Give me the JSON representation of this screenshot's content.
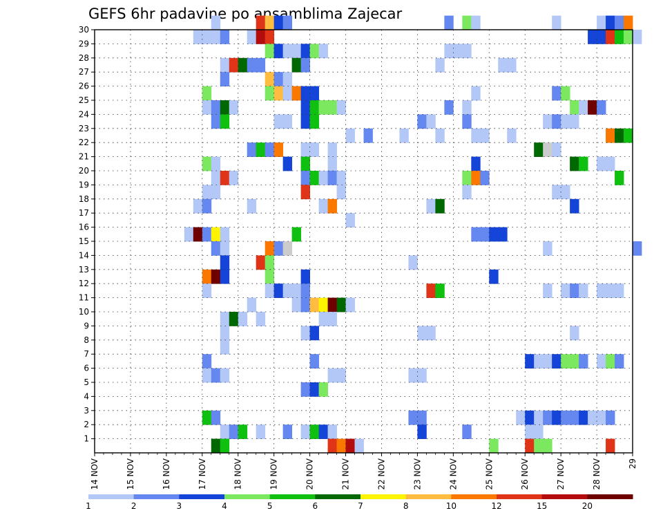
{
  "chart_data": {
    "type": "heatmap",
    "title": "GEFS 6hr padavine po ansamblima Zajecar",
    "xlabel": "",
    "ylabel": "",
    "x_ticks": [
      "14 NOV",
      "15 NOV",
      "16 NOV",
      "17 NOV",
      "18 NOV",
      "19 NOV",
      "20 NOV",
      "21 NOV",
      "22 NOV",
      "23 NOV",
      "24 NOV",
      "25 NOV",
      "26 NOV",
      "27 NOV",
      "28 NOV",
      "29"
    ],
    "y_ticks": [
      "1",
      "2",
      "3",
      "4",
      "5",
      "6",
      "7",
      "8",
      "9",
      "10",
      "11",
      "12",
      "13",
      "14",
      "15",
      "16",
      "17",
      "18",
      "19",
      "20",
      "21",
      "22",
      "23",
      "24",
      "25",
      "26",
      "27",
      "28",
      "29",
      "30"
    ],
    "x_range": [
      "14 NOV",
      "29 NOV"
    ],
    "steps_per_day": 4,
    "member_range": [
      0,
      30
    ],
    "grid": true,
    "legend": {
      "position": "bottom",
      "levels": [
        "1",
        "2",
        "3",
        "4",
        "5",
        "6",
        "7",
        "8",
        "10",
        "12",
        "15",
        "20"
      ],
      "colors": [
        "#b4c8f8",
        "#6488f0",
        "#1444d8",
        "#7ce860",
        "#10c010",
        "#006800",
        "#fff400",
        "#ffbc40",
        "#fa7800",
        "#e03418",
        "#b40c0c",
        "#6e0000"
      ]
    },
    "cells": [
      [
        30,
        13,
        1
      ],
      [
        30,
        18,
        10
      ],
      [
        30,
        19,
        8
      ],
      [
        30,
        20,
        3
      ],
      [
        30,
        21,
        2
      ],
      [
        30,
        39,
        2
      ],
      [
        30,
        41,
        4
      ],
      [
        30,
        42,
        1
      ],
      [
        30,
        51,
        1
      ],
      [
        30,
        56,
        1
      ],
      [
        30,
        57,
        3
      ],
      [
        30,
        58,
        2
      ],
      [
        30,
        59,
        9
      ],
      [
        29,
        12,
        1
      ],
      [
        29,
        13,
        1
      ],
      [
        29,
        14,
        2
      ],
      [
        29,
        11,
        1
      ],
      [
        29,
        17,
        1
      ],
      [
        29,
        18,
        11
      ],
      [
        29,
        19,
        10
      ],
      [
        29,
        55,
        3
      ],
      [
        29,
        56,
        3
      ],
      [
        29,
        57,
        10
      ],
      [
        29,
        58,
        5
      ],
      [
        29,
        59,
        4
      ],
      [
        29,
        60,
        1
      ],
      [
        28,
        19,
        4
      ],
      [
        28,
        20,
        3
      ],
      [
        28,
        21,
        1
      ],
      [
        28,
        22,
        1
      ],
      [
        28,
        23,
        3
      ],
      [
        28,
        24,
        4
      ],
      [
        28,
        25,
        1
      ],
      [
        28,
        39,
        1
      ],
      [
        28,
        40,
        1
      ],
      [
        28,
        41,
        1
      ],
      [
        27,
        14,
        1
      ],
      [
        27,
        15,
        10
      ],
      [
        27,
        16,
        6
      ],
      [
        27,
        17,
        2
      ],
      [
        27,
        18,
        2
      ],
      [
        27,
        22,
        6
      ],
      [
        27,
        23,
        2
      ],
      [
        27,
        38,
        1
      ],
      [
        27,
        45,
        1
      ],
      [
        27,
        46,
        1
      ],
      [
        26,
        14,
        2
      ],
      [
        26,
        19,
        8
      ],
      [
        26,
        20,
        2
      ],
      [
        26,
        21,
        1
      ],
      [
        25,
        12,
        4
      ],
      [
        25,
        19,
        4
      ],
      [
        25,
        20,
        8
      ],
      [
        25,
        21,
        1
      ],
      [
        25,
        22,
        9
      ],
      [
        25,
        23,
        3
      ],
      [
        25,
        24,
        3
      ],
      [
        25,
        42,
        1
      ],
      [
        25,
        51,
        2
      ],
      [
        25,
        52,
        4
      ],
      [
        24,
        12,
        1
      ],
      [
        24,
        13,
        2
      ],
      [
        24,
        14,
        6
      ],
      [
        24,
        15,
        1
      ],
      [
        24,
        23,
        3
      ],
      [
        24,
        24,
        5
      ],
      [
        24,
        25,
        4
      ],
      [
        24,
        26,
        4
      ],
      [
        24,
        27,
        1
      ],
      [
        24,
        39,
        2
      ],
      [
        24,
        41,
        1
      ],
      [
        24,
        53,
        4
      ],
      [
        24,
        54,
        1
      ],
      [
        24,
        55,
        12
      ],
      [
        24,
        56,
        2
      ],
      [
        23,
        13,
        2
      ],
      [
        23,
        14,
        5
      ],
      [
        23,
        20,
        1
      ],
      [
        23,
        21,
        1
      ],
      [
        23,
        23,
        3
      ],
      [
        23,
        24,
        5
      ],
      [
        23,
        36,
        2
      ],
      [
        23,
        37,
        1
      ],
      [
        23,
        41,
        2
      ],
      [
        23,
        50,
        1
      ],
      [
        23,
        51,
        2
      ],
      [
        23,
        52,
        1
      ],
      [
        23,
        53,
        1
      ],
      [
        22,
        28,
        1
      ],
      [
        22,
        30,
        2
      ],
      [
        22,
        34,
        1
      ],
      [
        22,
        38,
        1
      ],
      [
        22,
        42,
        1
      ],
      [
        22,
        43,
        1
      ],
      [
        22,
        46,
        1
      ],
      [
        22,
        57,
        9
      ],
      [
        22,
        58,
        6
      ],
      [
        22,
        59,
        5
      ],
      [
        21,
        17,
        2
      ],
      [
        21,
        18,
        5
      ],
      [
        21,
        19,
        2
      ],
      [
        21,
        20,
        9
      ],
      [
        21,
        23,
        1
      ],
      [
        21,
        24,
        1
      ],
      [
        21,
        26,
        1
      ],
      [
        21,
        49,
        6
      ],
      [
        21,
        50,
        13
      ],
      [
        21,
        51,
        1
      ],
      [
        20,
        12,
        4
      ],
      [
        20,
        13,
        1
      ],
      [
        20,
        21,
        3
      ],
      [
        20,
        23,
        5
      ],
      [
        20,
        26,
        1
      ],
      [
        20,
        42,
        3
      ],
      [
        20,
        53,
        6
      ],
      [
        20,
        54,
        5
      ],
      [
        20,
        56,
        1
      ],
      [
        20,
        57,
        1
      ],
      [
        19,
        13,
        1
      ],
      [
        19,
        14,
        10
      ],
      [
        19,
        15,
        1
      ],
      [
        19,
        23,
        2
      ],
      [
        19,
        24,
        5
      ],
      [
        19,
        25,
        1
      ],
      [
        19,
        26,
        2
      ],
      [
        19,
        27,
        1
      ],
      [
        19,
        41,
        4
      ],
      [
        19,
        42,
        9
      ],
      [
        19,
        43,
        2
      ],
      [
        19,
        58,
        5
      ],
      [
        18,
        12,
        1
      ],
      [
        18,
        13,
        1
      ],
      [
        18,
        23,
        10
      ],
      [
        18,
        27,
        1
      ],
      [
        18,
        41,
        1
      ],
      [
        18,
        51,
        1
      ],
      [
        18,
        52,
        1
      ],
      [
        17,
        11,
        1
      ],
      [
        17,
        12,
        2
      ],
      [
        17,
        17,
        1
      ],
      [
        17,
        25,
        1
      ],
      [
        17,
        26,
        9
      ],
      [
        17,
        37,
        1
      ],
      [
        17,
        38,
        6
      ],
      [
        17,
        53,
        3
      ],
      [
        16,
        28,
        1
      ],
      [
        15,
        10,
        1
      ],
      [
        15,
        11,
        12
      ],
      [
        15,
        12,
        2
      ],
      [
        15,
        13,
        7
      ],
      [
        15,
        14,
        1
      ],
      [
        15,
        22,
        5
      ],
      [
        15,
        42,
        2
      ],
      [
        15,
        43,
        2
      ],
      [
        15,
        44,
        3
      ],
      [
        15,
        45,
        3
      ],
      [
        14,
        13,
        2
      ],
      [
        14,
        14,
        1
      ],
      [
        14,
        19,
        9
      ],
      [
        14,
        20,
        2
      ],
      [
        14,
        21,
        14
      ],
      [
        14,
        50,
        1
      ],
      [
        14,
        60,
        2
      ],
      [
        13,
        14,
        3
      ],
      [
        13,
        18,
        10
      ],
      [
        13,
        19,
        4
      ],
      [
        13,
        35,
        1
      ],
      [
        12,
        12,
        9
      ],
      [
        12,
        13,
        12
      ],
      [
        12,
        14,
        3
      ],
      [
        12,
        19,
        4
      ],
      [
        12,
        23,
        3
      ],
      [
        12,
        44,
        3
      ],
      [
        11,
        12,
        1
      ],
      [
        11,
        19,
        1
      ],
      [
        11,
        20,
        3
      ],
      [
        11,
        21,
        1
      ],
      [
        11,
        22,
        1
      ],
      [
        11,
        23,
        2
      ],
      [
        11,
        37,
        10
      ],
      [
        11,
        38,
        5
      ],
      [
        11,
        50,
        1
      ],
      [
        11,
        52,
        1
      ],
      [
        11,
        53,
        2
      ],
      [
        11,
        54,
        1
      ],
      [
        11,
        56,
        1
      ],
      [
        11,
        57,
        1
      ],
      [
        11,
        58,
        1
      ],
      [
        10,
        17,
        1
      ],
      [
        10,
        22,
        1
      ],
      [
        10,
        23,
        2
      ],
      [
        10,
        24,
        8
      ],
      [
        10,
        25,
        7
      ],
      [
        10,
        26,
        12
      ],
      [
        10,
        27,
        6
      ],
      [
        10,
        28,
        1
      ],
      [
        9,
        14,
        1
      ],
      [
        9,
        15,
        6
      ],
      [
        9,
        16,
        1
      ],
      [
        9,
        18,
        1
      ],
      [
        9,
        25,
        1
      ],
      [
        9,
        26,
        1
      ],
      [
        8,
        14,
        1
      ],
      [
        8,
        23,
        1
      ],
      [
        8,
        24,
        3
      ],
      [
        8,
        36,
        1
      ],
      [
        8,
        37,
        1
      ],
      [
        8,
        53,
        1
      ],
      [
        7,
        14,
        1
      ],
      [
        6,
        12,
        2
      ],
      [
        6,
        24,
        2
      ],
      [
        6,
        48,
        3
      ],
      [
        6,
        49,
        1
      ],
      [
        6,
        50,
        1
      ],
      [
        6,
        51,
        3
      ],
      [
        6,
        52,
        4
      ],
      [
        6,
        53,
        4
      ],
      [
        6,
        54,
        2
      ],
      [
        6,
        56,
        1
      ],
      [
        6,
        57,
        4
      ],
      [
        6,
        58,
        2
      ],
      [
        5,
        12,
        1
      ],
      [
        5,
        13,
        2
      ],
      [
        5,
        14,
        1
      ],
      [
        5,
        26,
        1
      ],
      [
        5,
        27,
        1
      ],
      [
        5,
        35,
        1
      ],
      [
        5,
        36,
        1
      ],
      [
        4,
        23,
        2
      ],
      [
        4,
        24,
        3
      ],
      [
        4,
        25,
        4
      ],
      [
        2,
        12,
        5
      ],
      [
        2,
        13,
        2
      ],
      [
        2,
        35,
        2
      ],
      [
        2,
        36,
        2
      ],
      [
        2,
        47,
        1
      ],
      [
        2,
        48,
        3
      ],
      [
        2,
        49,
        1
      ],
      [
        2,
        50,
        2
      ],
      [
        2,
        51,
        3
      ],
      [
        2,
        52,
        2
      ],
      [
        2,
        53,
        2
      ],
      [
        2,
        54,
        3
      ],
      [
        2,
        55,
        1
      ],
      [
        2,
        56,
        1
      ],
      [
        2,
        57,
        2
      ],
      [
        1,
        14,
        1
      ],
      [
        1,
        15,
        2
      ],
      [
        1,
        16,
        5
      ],
      [
        1,
        18,
        1
      ],
      [
        1,
        21,
        2
      ],
      [
        1,
        23,
        1
      ],
      [
        1,
        24,
        5
      ],
      [
        1,
        25,
        3
      ],
      [
        1,
        26,
        1
      ],
      [
        1,
        36,
        3
      ],
      [
        1,
        41,
        2
      ],
      [
        1,
        48,
        1
      ],
      [
        1,
        49,
        1
      ],
      [
        0,
        13,
        6
      ],
      [
        0,
        14,
        5
      ],
      [
        0,
        26,
        10
      ],
      [
        0,
        27,
        9
      ],
      [
        0,
        28,
        11
      ],
      [
        0,
        29,
        1
      ],
      [
        0,
        44,
        4
      ],
      [
        0,
        48,
        10
      ],
      [
        0,
        49,
        4
      ],
      [
        0,
        50,
        4
      ],
      [
        0,
        57,
        10
      ]
    ]
  }
}
